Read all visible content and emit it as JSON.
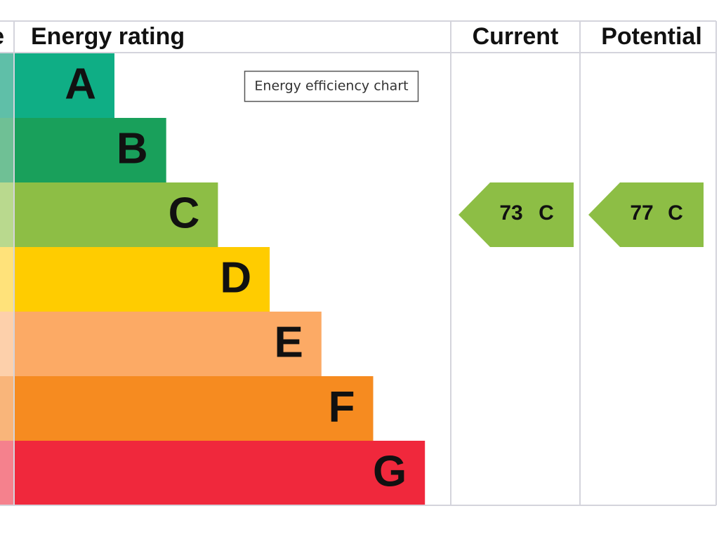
{
  "header": {
    "cutoff_label": "e",
    "rating": "Energy rating",
    "current": "Current",
    "potential": "Potential"
  },
  "tooltip": "Energy efficiency chart",
  "bands": [
    "A",
    "B",
    "C",
    "D",
    "E",
    "F",
    "G"
  ],
  "current": {
    "score": 73,
    "band": "C"
  },
  "potential": {
    "score": 77,
    "band": "C"
  }
}
